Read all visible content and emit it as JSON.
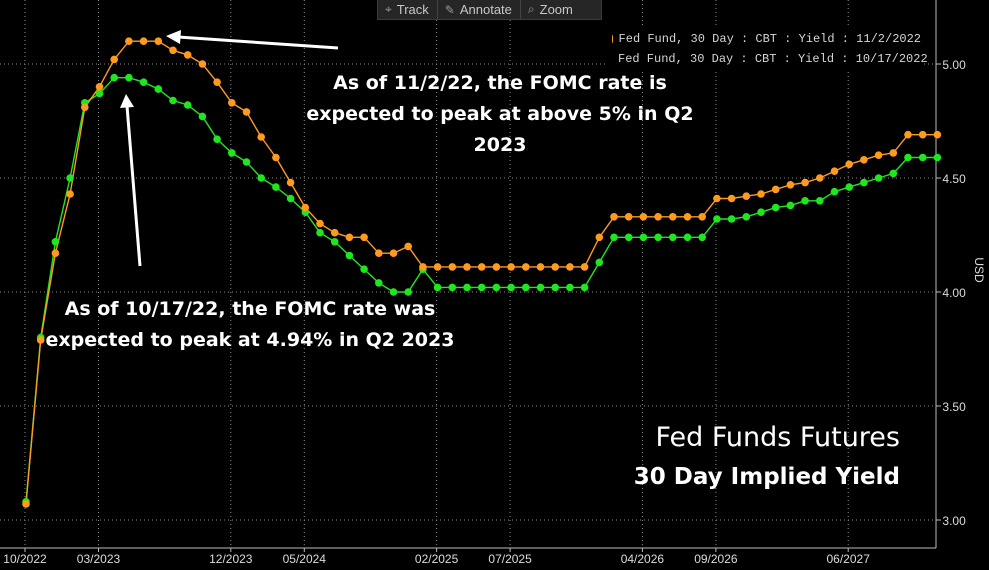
{
  "toolbar": [
    {
      "label": "Track",
      "icon": "crosshair-icon",
      "glyph": "⌖"
    },
    {
      "label": "Annotate",
      "icon": "pencil-icon",
      "glyph": "✎"
    },
    {
      "label": "Zoom",
      "icon": "magnifier-icon",
      "glyph": "⌕"
    }
  ],
  "colors": {
    "series1": "#ff9a1f",
    "series2": "#1fe61f",
    "grid": "#8a8a8a",
    "background": "#000000"
  },
  "annotations": {
    "top": "As of 11/2/22, the FOMC rate is expected to peak at above 5% in Q2 2023",
    "bottom": "As of 10/17/22, the FOMC rate was expected to peak at 4.94% in Q2 2023"
  },
  "title": {
    "line1": "Fed Funds Futures",
    "line2": "30 Day Implied Yield"
  },
  "chart_data": {
    "type": "line",
    "ylabel": "USD",
    "ylim": [
      2.94,
      5.26
    ],
    "y_ticks": [
      "3.00",
      "3.50",
      "4.00",
      "4.50",
      "5.00"
    ],
    "x_ticks": [
      "10/2022",
      "03/2023",
      "12/2023",
      "05/2024",
      "02/2025",
      "07/2025",
      "04/2026",
      "09/2026",
      "06/2027"
    ],
    "grid": true,
    "legend_position": "top-right",
    "series": [
      {
        "name": "Fed Fund, 30 Day : CBT : Yield : 11/2/2022",
        "values": [
          3.07,
          3.79,
          4.17,
          4.43,
          4.81,
          4.9,
          5.02,
          5.1,
          5.1,
          5.1,
          5.06,
          5.04,
          5.0,
          4.92,
          4.83,
          4.79,
          4.68,
          4.59,
          4.48,
          4.37,
          4.3,
          4.26,
          4.24,
          4.24,
          4.17,
          4.17,
          4.2,
          4.11,
          4.11,
          4.11,
          4.11,
          4.11,
          4.11,
          4.11,
          4.11,
          4.11,
          4.11,
          4.11,
          4.11,
          4.24,
          4.33,
          4.33,
          4.33,
          4.33,
          4.33,
          4.33,
          4.33,
          4.41,
          4.41,
          4.42,
          4.43,
          4.45,
          4.47,
          4.48,
          4.5,
          4.53,
          4.56,
          4.58,
          4.6,
          4.61,
          4.69,
          4.69,
          4.69
        ]
      },
      {
        "name": "Fed Fund, 30 Day : CBT : Yield : 10/17/2022",
        "values": [
          3.08,
          3.8,
          4.22,
          4.5,
          4.83,
          4.87,
          4.94,
          4.94,
          4.92,
          4.89,
          4.84,
          4.82,
          4.77,
          4.67,
          4.61,
          4.57,
          4.5,
          4.46,
          4.41,
          4.35,
          4.26,
          4.22,
          4.16,
          4.1,
          4.04,
          4.0,
          4.0,
          4.1,
          4.02,
          4.02,
          4.02,
          4.02,
          4.02,
          4.02,
          4.02,
          4.02,
          4.02,
          4.02,
          4.02,
          4.13,
          4.24,
          4.24,
          4.24,
          4.24,
          4.24,
          4.24,
          4.24,
          4.32,
          4.32,
          4.33,
          4.35,
          4.37,
          4.38,
          4.4,
          4.4,
          4.44,
          4.46,
          4.48,
          4.5,
          4.52,
          4.59,
          4.59,
          4.59
        ]
      }
    ]
  }
}
